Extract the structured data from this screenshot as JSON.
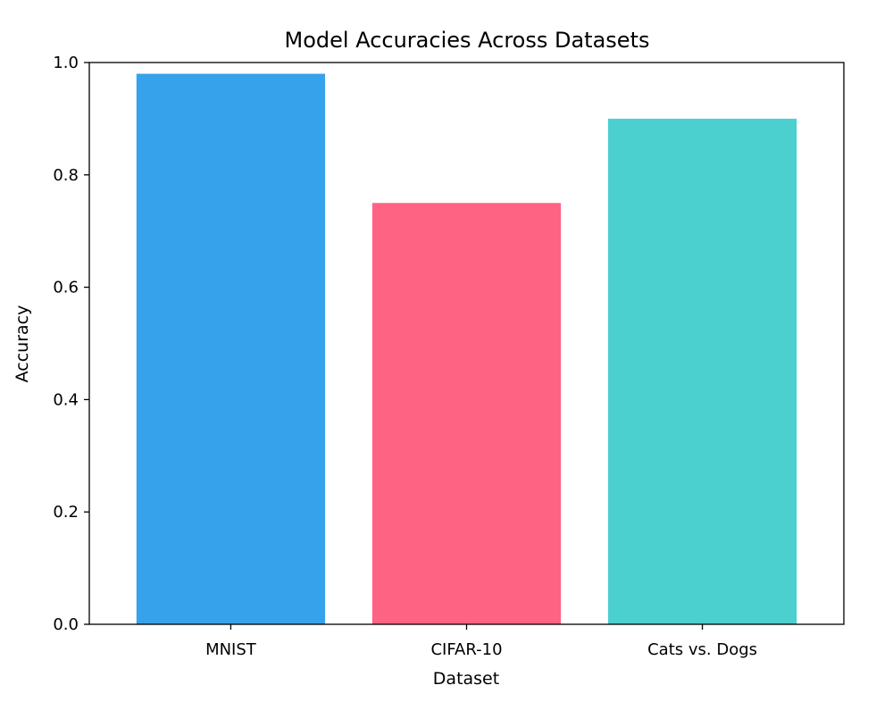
{
  "chart_data": {
    "type": "bar",
    "title": "Model Accuracies Across Datasets",
    "xlabel": "Dataset",
    "ylabel": "Accuracy",
    "categories": [
      "MNIST",
      "CIFAR-10",
      "Cats vs. Dogs"
    ],
    "values": [
      0.98,
      0.75,
      0.9
    ],
    "colors": [
      "#36a2eb",
      "#ff6384",
      "#4bcfcf"
    ],
    "ylim": [
      0,
      1.0
    ],
    "yticks": [
      "0.0",
      "0.2",
      "0.4",
      "0.6",
      "0.8",
      "1.0"
    ],
    "grid": false,
    "legend": false
  }
}
